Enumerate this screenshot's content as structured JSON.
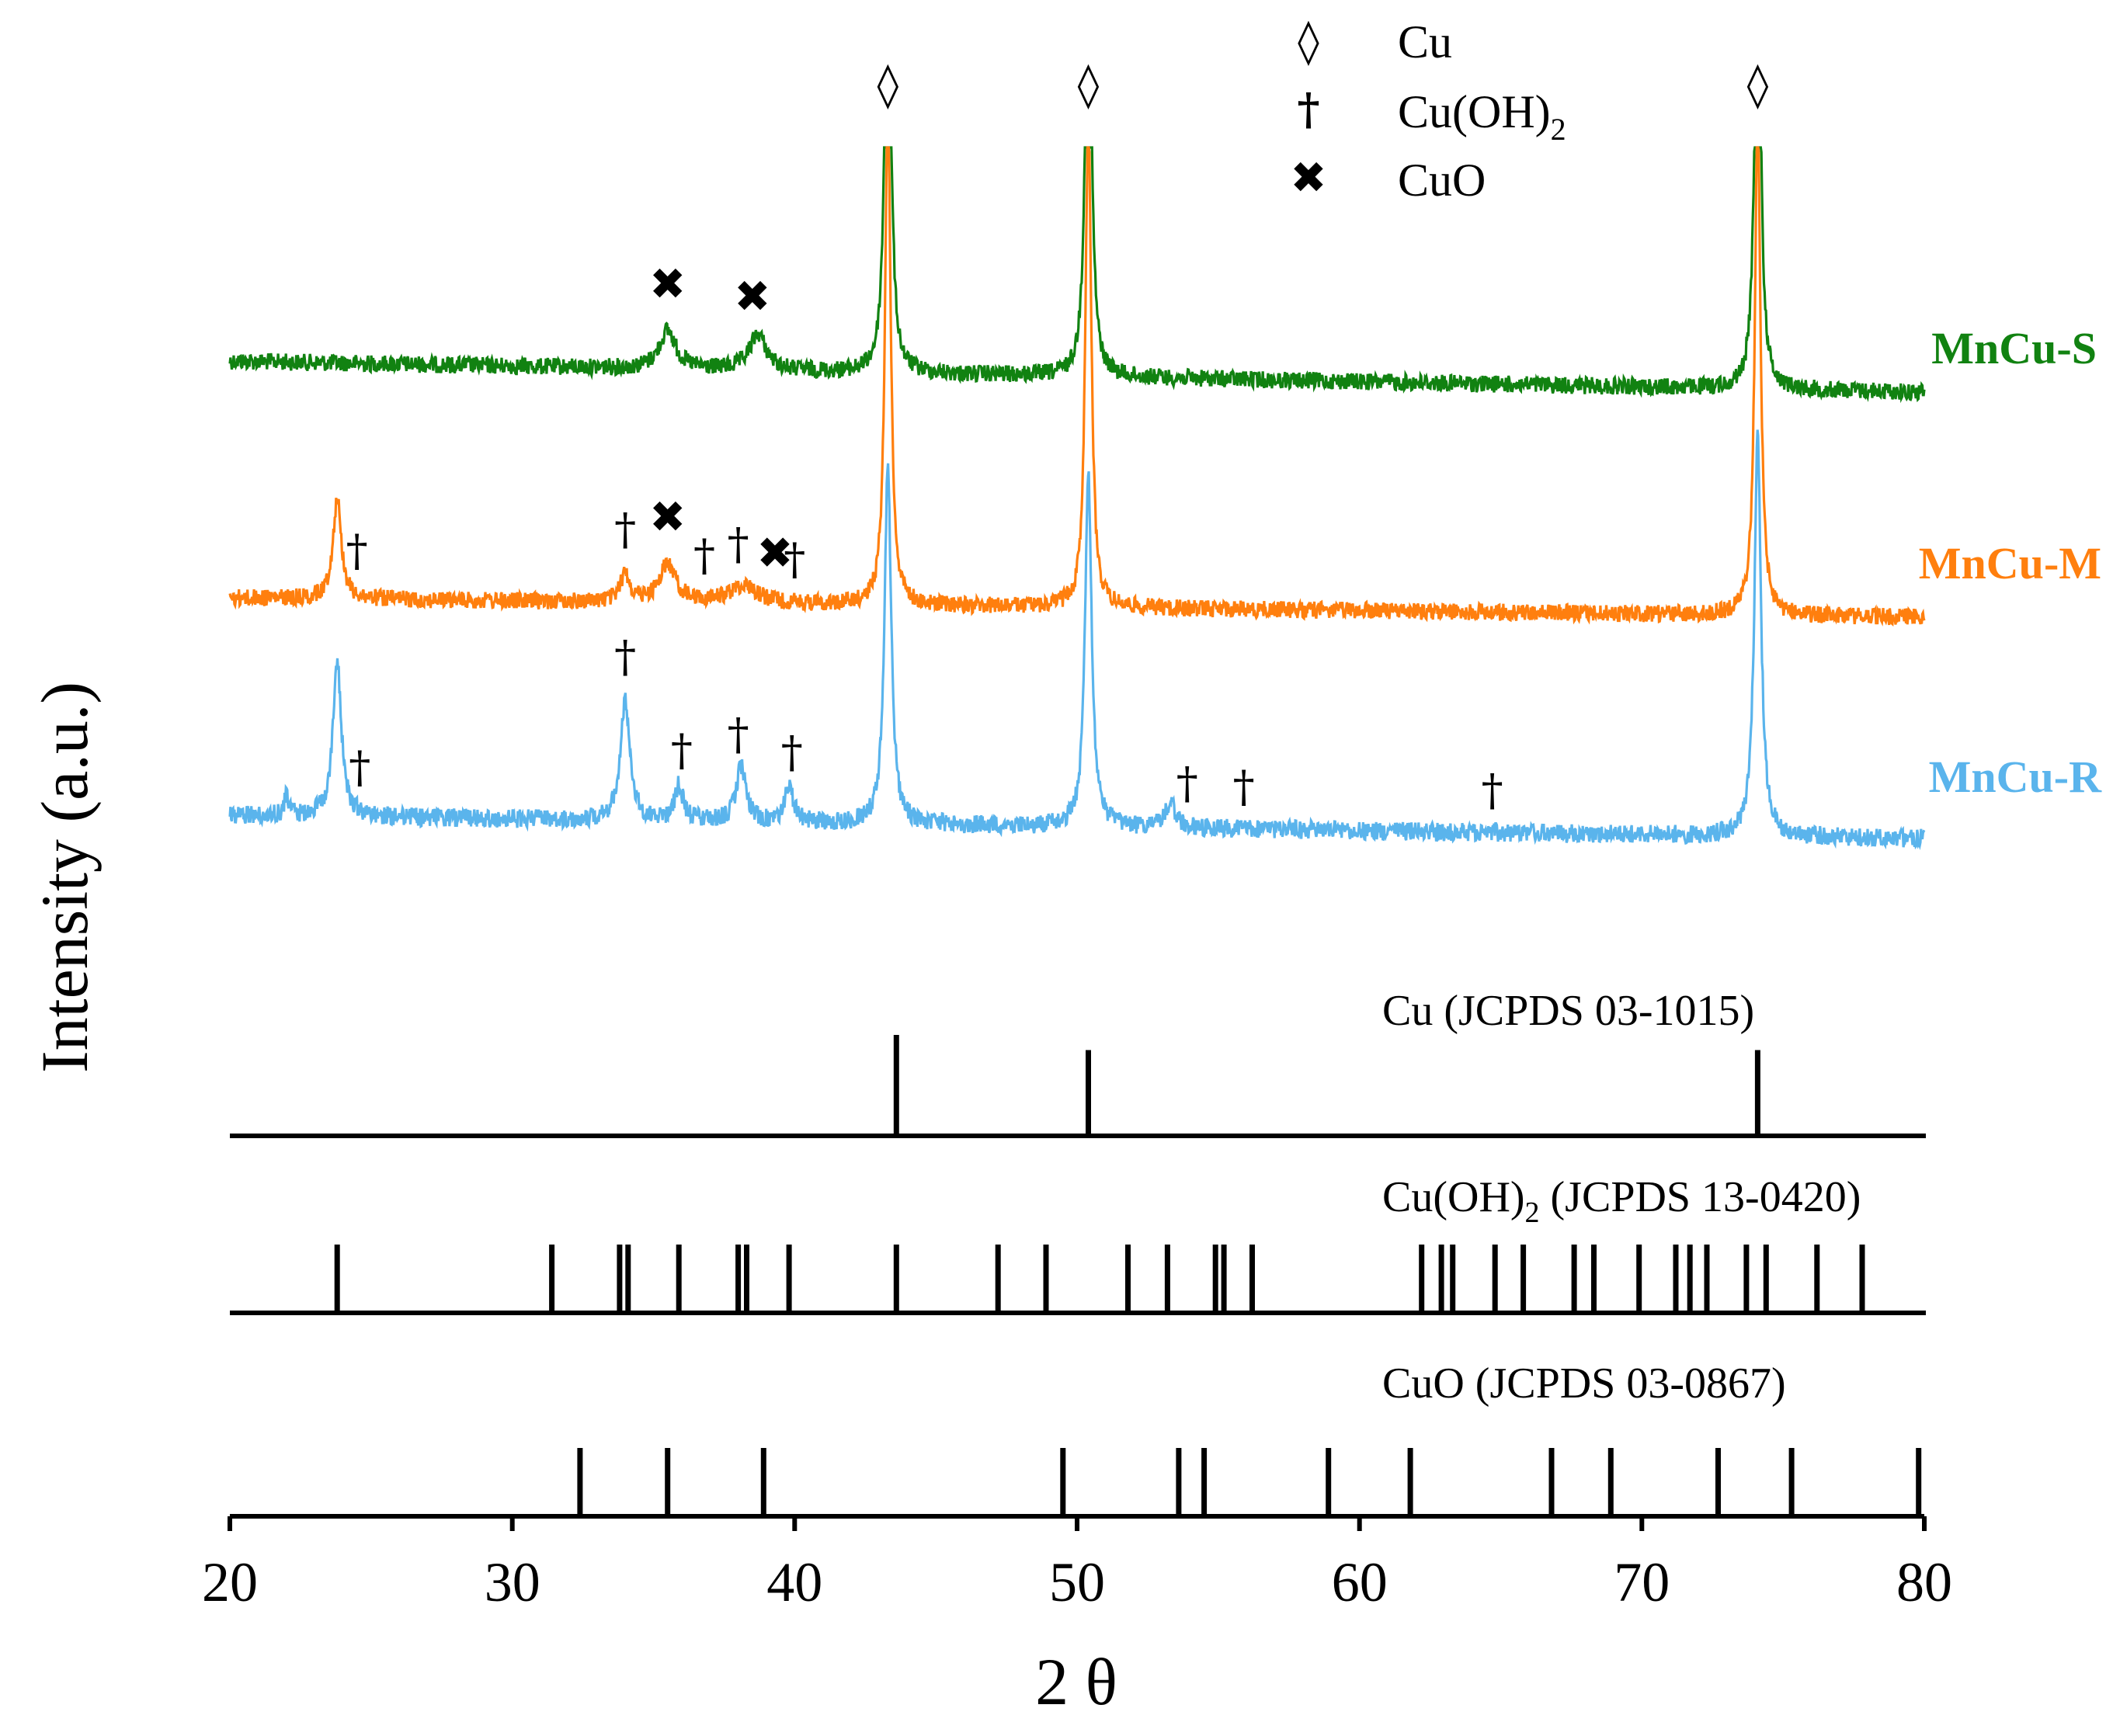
{
  "chart_data": {
    "type": "line",
    "title": "",
    "xlabel": "2 θ",
    "ylabel": "Intensity (a.u.)",
    "xlim": [
      20,
      80
    ],
    "xticks": [
      "20",
      "30",
      "40",
      "50",
      "60",
      "70",
      "80"
    ],
    "grid": false,
    "legend": {
      "placement": "top-center",
      "entries": [
        {
          "symbol": "◊",
          "label": "Cu",
          "phase": "cu"
        },
        {
          "symbol": "†",
          "label": "Cu(OH)",
          "subscript": "2",
          "phase": "cuoh2"
        },
        {
          "symbol": "✖",
          "label": "CuO",
          "phase": "cuo"
        }
      ]
    },
    "series": [
      {
        "name": "MnCu-S",
        "color": "#118211",
        "peaks": [
          {
            "x": 35.5,
            "height": 0.38,
            "width": 0.35
          },
          {
            "x": 38.7,
            "height": 0.36,
            "width": 0.35
          },
          {
            "x": 43.3,
            "height": 5.0,
            "width": 0.12
          },
          {
            "x": 50.4,
            "height": 5.0,
            "width": 0.12
          },
          {
            "x": 74.1,
            "height": 5.0,
            "width": 0.12
          }
        ],
        "markers": [
          {
            "x": 35.5,
            "symbol": "✖"
          },
          {
            "x": 38.5,
            "symbol": "✖"
          }
        ]
      },
      {
        "name": "MnCu-M",
        "color": "#ff7f0e",
        "peaks": [
          {
            "x": 23.8,
            "height": 1.0,
            "width": 0.18
          },
          {
            "x": 34.0,
            "height": 0.28,
            "width": 0.2
          },
          {
            "x": 35.5,
            "height": 0.38,
            "width": 0.35
          },
          {
            "x": 38.2,
            "height": 0.18,
            "width": 0.6
          },
          {
            "x": 43.3,
            "height": 5.0,
            "width": 0.12
          },
          {
            "x": 50.4,
            "height": 5.0,
            "width": 0.12
          },
          {
            "x": 74.1,
            "height": 5.0,
            "width": 0.12
          }
        ],
        "markers": [
          {
            "x": 24.5,
            "symbol": "†"
          },
          {
            "x": 34.0,
            "symbol": "†"
          },
          {
            "x": 35.5,
            "symbol": "✖"
          },
          {
            "x": 36.8,
            "symbol": "†"
          },
          {
            "x": 38.0,
            "symbol": "†"
          },
          {
            "x": 39.3,
            "symbol": "✖"
          },
          {
            "x": 40.0,
            "symbol": "†"
          }
        ]
      },
      {
        "name": "MnCu-R",
        "color": "#5ab4ec",
        "peaks": [
          {
            "x": 22.0,
            "height": 0.18,
            "width": 0.1
          },
          {
            "x": 23.8,
            "height": 1.55,
            "width": 0.18
          },
          {
            "x": 34.0,
            "height": 1.2,
            "width": 0.2
          },
          {
            "x": 35.9,
            "height": 0.35,
            "width": 0.18
          },
          {
            "x": 38.1,
            "height": 0.55,
            "width": 0.2
          },
          {
            "x": 39.8,
            "height": 0.35,
            "width": 0.18
          },
          {
            "x": 43.3,
            "height": 3.6,
            "width": 0.14
          },
          {
            "x": 50.4,
            "height": 3.5,
            "width": 0.14
          },
          {
            "x": 53.3,
            "height": 0.25,
            "width": 0.2
          },
          {
            "x": 74.1,
            "height": 4.0,
            "width": 0.14
          }
        ],
        "markers": [
          {
            "x": 24.6,
            "symbol": "†"
          },
          {
            "x": 34.0,
            "symbol": "†"
          },
          {
            "x": 36.0,
            "symbol": "†"
          },
          {
            "x": 38.0,
            "symbol": "†"
          },
          {
            "x": 39.9,
            "symbol": "†"
          },
          {
            "x": 53.9,
            "symbol": "†"
          },
          {
            "x": 55.9,
            "symbol": "†"
          },
          {
            "x": 64.7,
            "symbol": "†"
          }
        ]
      }
    ],
    "phase_peak_markers": [
      {
        "x": 43.3,
        "symbol": "◊"
      },
      {
        "x": 50.4,
        "symbol": "◊"
      },
      {
        "x": 74.1,
        "symbol": "◊"
      }
    ],
    "reference_patterns": [
      {
        "label": "Cu (JCPDS 03-1015)",
        "label_main": "Cu (JCPDS 03-1015)",
        "lines": [
          {
            "x": 43.6,
            "intensity": 1.0
          },
          {
            "x": 50.4,
            "intensity": 0.85
          },
          {
            "x": 74.1,
            "intensity": 0.85
          }
        ]
      },
      {
        "label": "Cu(OH)2 (JCPDS 13-0420)",
        "label_pre": "Cu(OH)",
        "label_sub": "2",
        "label_post": " (JCPDS 13-0420)",
        "lines": [
          {
            "x": 23.8,
            "intensity": 1.0
          },
          {
            "x": 31.4,
            "intensity": 1.0
          },
          {
            "x": 33.8,
            "intensity": 1.0
          },
          {
            "x": 34.1,
            "intensity": 1.0
          },
          {
            "x": 35.9,
            "intensity": 1.0
          },
          {
            "x": 38.0,
            "intensity": 1.0
          },
          {
            "x": 38.3,
            "intensity": 1.0
          },
          {
            "x": 39.8,
            "intensity": 1.0
          },
          {
            "x": 43.6,
            "intensity": 1.0
          },
          {
            "x": 47.2,
            "intensity": 1.0
          },
          {
            "x": 48.9,
            "intensity": 1.0
          },
          {
            "x": 51.8,
            "intensity": 1.0
          },
          {
            "x": 53.2,
            "intensity": 1.0
          },
          {
            "x": 54.9,
            "intensity": 1.0
          },
          {
            "x": 55.2,
            "intensity": 1.0
          },
          {
            "x": 56.2,
            "intensity": 1.0
          },
          {
            "x": 62.2,
            "intensity": 1.0
          },
          {
            "x": 62.9,
            "intensity": 1.0
          },
          {
            "x": 63.3,
            "intensity": 1.0
          },
          {
            "x": 64.8,
            "intensity": 1.0
          },
          {
            "x": 65.8,
            "intensity": 1.0
          },
          {
            "x": 67.6,
            "intensity": 1.0
          },
          {
            "x": 68.3,
            "intensity": 1.0
          },
          {
            "x": 69.9,
            "intensity": 1.0
          },
          {
            "x": 71.2,
            "intensity": 1.0
          },
          {
            "x": 71.7,
            "intensity": 1.0
          },
          {
            "x": 72.3,
            "intensity": 1.0
          },
          {
            "x": 73.7,
            "intensity": 1.0
          },
          {
            "x": 74.4,
            "intensity": 1.0
          },
          {
            "x": 76.2,
            "intensity": 1.0
          },
          {
            "x": 77.8,
            "intensity": 1.0
          }
        ]
      },
      {
        "label": "CuO (JCPDS 03-0867)",
        "label_main": "CuO (JCPDS 03-0867)",
        "lines": [
          {
            "x": 32.4,
            "intensity": 1.0
          },
          {
            "x": 35.5,
            "intensity": 1.0
          },
          {
            "x": 38.9,
            "intensity": 1.0
          },
          {
            "x": 49.5,
            "intensity": 1.0
          },
          {
            "x": 53.6,
            "intensity": 1.0
          },
          {
            "x": 54.5,
            "intensity": 1.0
          },
          {
            "x": 58.9,
            "intensity": 1.0
          },
          {
            "x": 61.8,
            "intensity": 1.0
          },
          {
            "x": 66.8,
            "intensity": 1.0
          },
          {
            "x": 68.9,
            "intensity": 1.0
          },
          {
            "x": 72.7,
            "intensity": 1.0
          },
          {
            "x": 75.3,
            "intensity": 1.0
          },
          {
            "x": 79.8,
            "intensity": 1.0
          }
        ]
      }
    ]
  }
}
